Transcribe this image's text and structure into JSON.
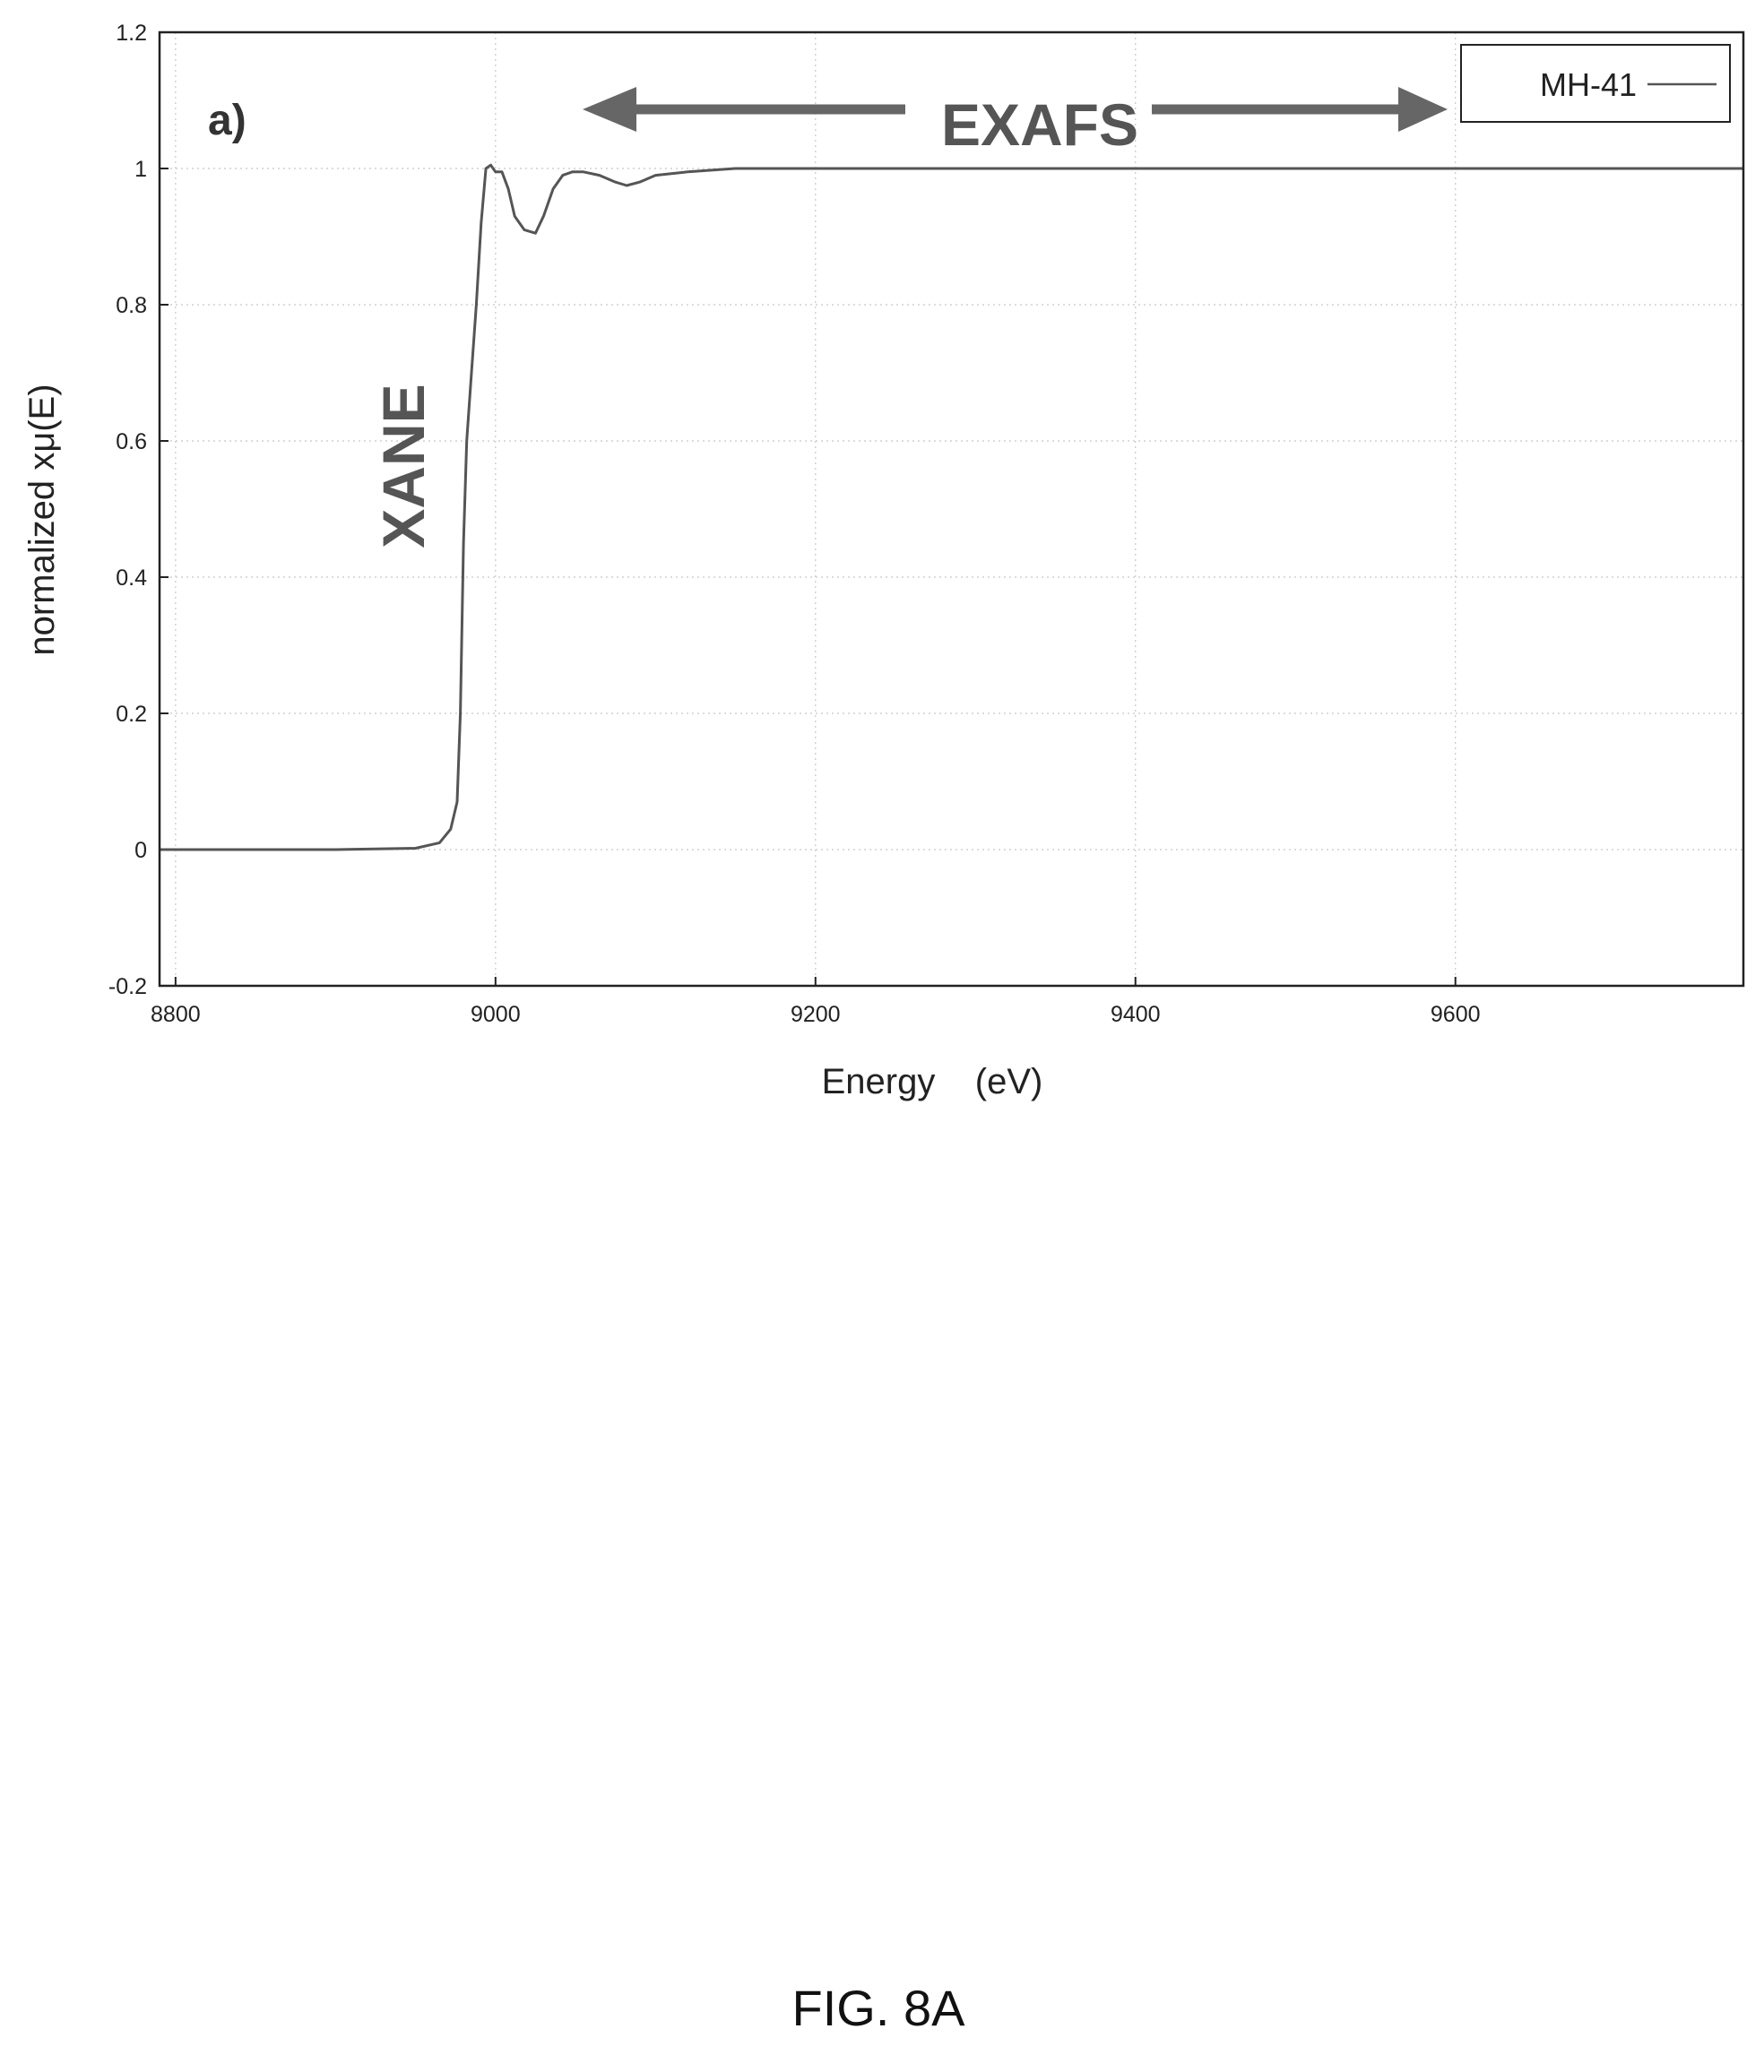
{
  "panel_label": "a)",
  "caption": "FIG. 8A",
  "annotations": {
    "exafs": "EXAFS",
    "xane": "XANE"
  },
  "colors": {
    "line": "#555555",
    "arrow": "#666666",
    "axis": "#222222"
  },
  "chart_data": {
    "type": "line",
    "xlabel": "Energy    (eV)",
    "ylabel": "normalized xμ(E)",
    "xlim": [
      8790,
      9780
    ],
    "ylim": [
      -0.2,
      1.2
    ],
    "xticks": [
      8800,
      9000,
      9200,
      9400,
      9600
    ],
    "yticks": [
      -0.2,
      0,
      0.2,
      0.4,
      0.6,
      0.8,
      1,
      1.2
    ],
    "xtick_labels": [
      "8800",
      "9000",
      "9200",
      "9400",
      "9600"
    ],
    "ytick_labels": [
      "-0.2",
      "0",
      "0.2",
      "0.4",
      "0.6",
      "0.8",
      "1",
      "1.2"
    ],
    "grid": true,
    "legend_position": "top-right",
    "series": [
      {
        "name": "MH-41",
        "x": [
          8790,
          8900,
          8950,
          8965,
          8972,
          8976,
          8978,
          8980,
          8982,
          8985,
          8988,
          8991,
          8994,
          8997,
          9000,
          9004,
          9008,
          9012,
          9018,
          9025,
          9030,
          9036,
          9042,
          9048,
          9055,
          9065,
          9075,
          9082,
          9090,
          9100,
          9120,
          9150,
          9200,
          9300,
          9400,
          9500,
          9600,
          9700,
          9780
        ],
        "y": [
          0,
          0,
          0.002,
          0.01,
          0.03,
          0.07,
          0.2,
          0.45,
          0.6,
          0.7,
          0.8,
          0.92,
          1.0,
          1.005,
          0.995,
          0.995,
          0.97,
          0.93,
          0.91,
          0.905,
          0.93,
          0.97,
          0.99,
          0.995,
          0.995,
          0.99,
          0.98,
          0.975,
          0.98,
          0.99,
          0.995,
          1.0,
          1.0,
          1.0,
          1.0,
          1.0,
          1.0,
          1.0,
          1.0
        ]
      }
    ]
  }
}
